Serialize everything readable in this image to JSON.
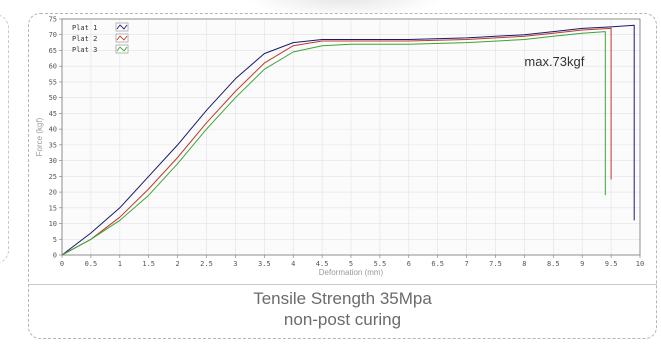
{
  "chart_data": {
    "type": "line",
    "xlabel": "Deformation (mm)",
    "ylabel": "Force (kgf)",
    "xlim": [
      0,
      10
    ],
    "ylim": [
      0,
      75
    ],
    "x_ticks": [
      "0",
      "0.5",
      "1",
      "1.5",
      "2",
      "2.5",
      "3",
      "3.5",
      "4",
      "4.5",
      "5",
      "5.5",
      "6",
      "6.5",
      "7",
      "7.5",
      "8",
      "8.5",
      "9",
      "9.5",
      "10"
    ],
    "y_ticks": [
      "0",
      "5",
      "10",
      "15",
      "20",
      "25",
      "30",
      "35",
      "40",
      "45",
      "50",
      "55",
      "60",
      "65",
      "70",
      "75"
    ],
    "grid": true,
    "legend_position": "top-left",
    "annotation": "max.73kgf",
    "series": [
      {
        "name": "Plat 1",
        "color": "#1a1a6e",
        "points": [
          [
            0,
            0
          ],
          [
            0.5,
            7
          ],
          [
            1,
            15
          ],
          [
            1.5,
            25
          ],
          [
            2,
            35
          ],
          [
            2.5,
            46
          ],
          [
            3,
            56
          ],
          [
            3.5,
            64
          ],
          [
            4,
            67.5
          ],
          [
            4.5,
            68.5
          ],
          [
            5,
            68.5
          ],
          [
            6,
            68.5
          ],
          [
            7,
            69
          ],
          [
            8,
            70
          ],
          [
            8.5,
            71
          ],
          [
            9,
            72
          ],
          [
            9.5,
            72.5
          ],
          [
            9.9,
            73
          ],
          [
            9.9,
            11
          ]
        ]
      },
      {
        "name": "Plat 2",
        "color": "#c0392b",
        "points": [
          [
            0,
            0
          ],
          [
            0.5,
            5
          ],
          [
            1,
            12
          ],
          [
            1.5,
            21
          ],
          [
            2,
            31
          ],
          [
            2.5,
            42
          ],
          [
            3,
            52
          ],
          [
            3.5,
            61
          ],
          [
            4,
            66.5
          ],
          [
            4.5,
            68
          ],
          [
            5,
            68
          ],
          [
            6,
            68
          ],
          [
            7,
            68.5
          ],
          [
            8,
            69.5
          ],
          [
            8.5,
            70.5
          ],
          [
            9,
            71.5
          ],
          [
            9.5,
            72
          ],
          [
            9.5,
            24
          ]
        ]
      },
      {
        "name": "Plat 3",
        "color": "#3aa635",
        "points": [
          [
            0,
            0
          ],
          [
            0.5,
            5
          ],
          [
            1,
            11
          ],
          [
            1.5,
            19
          ],
          [
            2,
            29
          ],
          [
            2.5,
            40
          ],
          [
            3,
            50
          ],
          [
            3.5,
            59
          ],
          [
            4,
            64.5
          ],
          [
            4.5,
            66.5
          ],
          [
            5,
            67
          ],
          [
            6,
            67
          ],
          [
            7,
            67.5
          ],
          [
            8,
            68.5
          ],
          [
            8.5,
            69.5
          ],
          [
            9,
            70.5
          ],
          [
            9.4,
            71
          ],
          [
            9.4,
            19
          ]
        ]
      }
    ]
  },
  "caption": {
    "line1": "Tensile Strength 35Mpa",
    "line2": "non-post curing"
  }
}
